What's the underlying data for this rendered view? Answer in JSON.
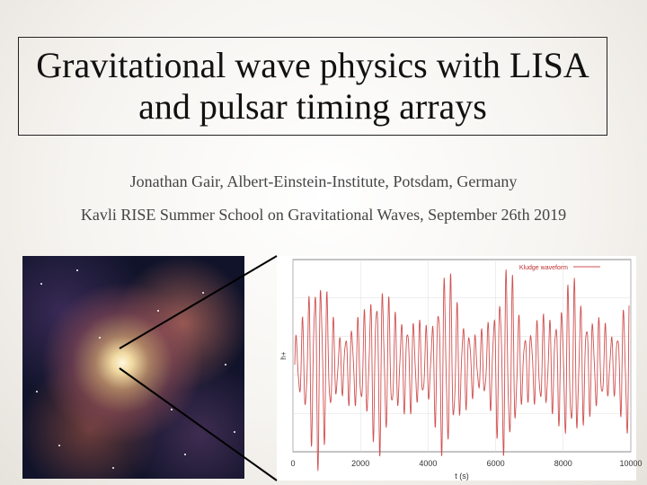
{
  "title": {
    "line1": "Gravitational wave physics with LISA",
    "line2": "and pulsar timing arrays"
  },
  "subtitle": {
    "author": "Jonathan Gair, Albert-Einstein-Institute, Potsdam, Germany",
    "event": "Kavli RISE Summer School on Gravitational Waves, September 26th 2019"
  },
  "image": {
    "description_icon": "galaxy-center-image"
  },
  "chart_data": {
    "type": "line",
    "legend": [
      "Kludge waveform"
    ],
    "legend_placement": "top-right",
    "xlabel": "t (s)",
    "ylabel": "h+",
    "xlim": [
      0,
      10000
    ],
    "x_ticks": [
      "0",
      "2000",
      "4000",
      "6000",
      "8000",
      "10000"
    ],
    "grid": true,
    "series_color": "#d05050"
  }
}
